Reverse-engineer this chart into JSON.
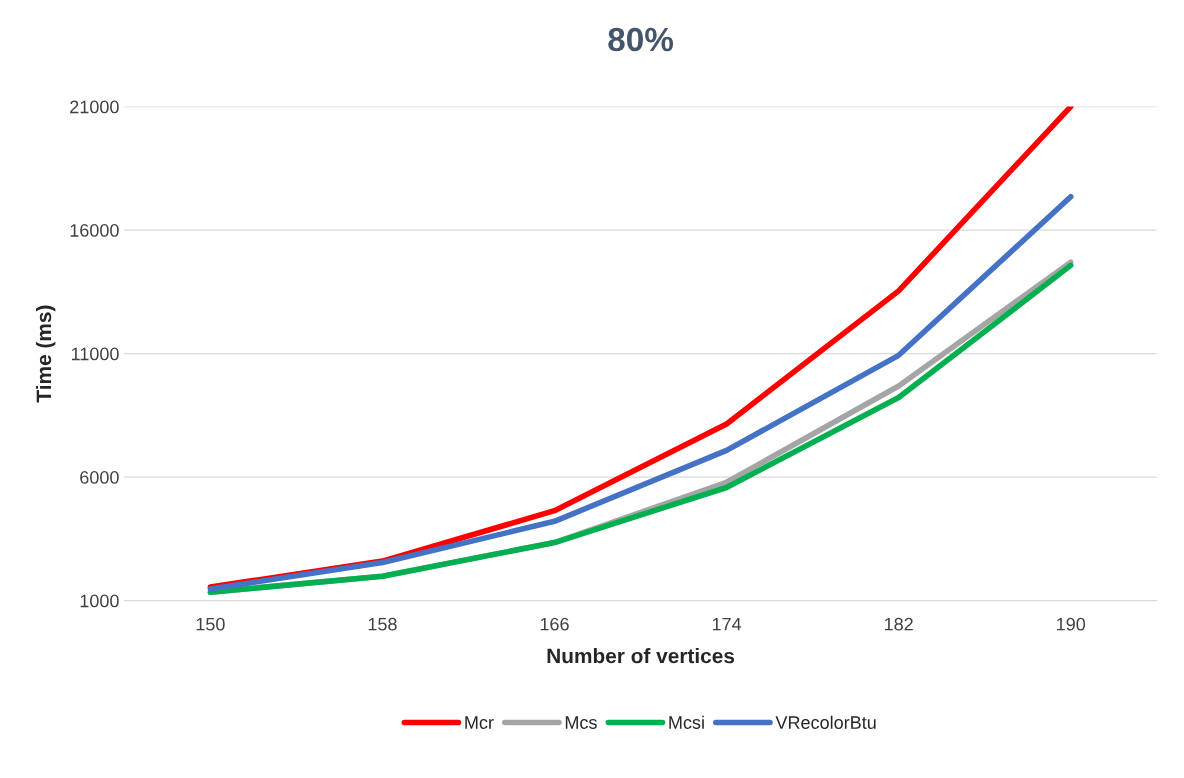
{
  "chart_data": {
    "type": "line",
    "title": "80%",
    "xlabel": "Number of vertices",
    "ylabel": "Time (ms)",
    "categories": [
      "150",
      "158",
      "166",
      "174",
      "182",
      "190"
    ],
    "series": [
      {
        "name": "Mcr",
        "color": "#ff0000",
        "values": [
          1550,
          2600,
          4640,
          8150,
          13540,
          21000
        ]
      },
      {
        "name": "Mcs",
        "color": "#a5a5a5",
        "values": [
          1340,
          1990,
          3350,
          5790,
          9690,
          14700
        ]
      },
      {
        "name": "Mcsi",
        "color": "#00b050",
        "values": [
          1340,
          1990,
          3350,
          5580,
          9220,
          14570
        ]
      },
      {
        "name": "VRecolorBtu",
        "color": "#4472c4",
        "values": [
          1470,
          2540,
          4210,
          7080,
          10930,
          17350
        ]
      }
    ],
    "ylim": [
      1000,
      21000
    ],
    "yticks": [
      1000,
      6000,
      11000,
      16000,
      21000
    ],
    "grid": "y",
    "legend": "bottom",
    "marker": "none",
    "line_style": "solid"
  }
}
